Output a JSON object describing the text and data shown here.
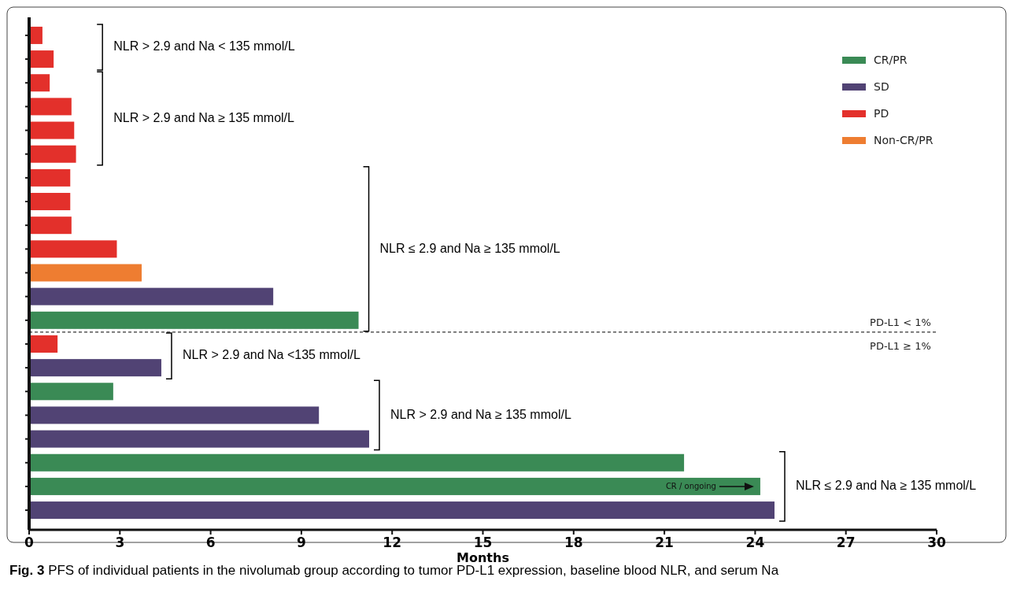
{
  "chart_data": {
    "type": "bar",
    "orientation": "horizontal",
    "xlabel": "Months",
    "xlim": [
      0,
      30
    ],
    "xticks": [
      0,
      3,
      6,
      9,
      12,
      15,
      18,
      21,
      24,
      27,
      30
    ],
    "tick_labels": "x",
    "legend": "top right",
    "grid": false,
    "categories": [
      null,
      null,
      null,
      null,
      null,
      null,
      null,
      null,
      null,
      null,
      null,
      null,
      null,
      null,
      null,
      null,
      null,
      null,
      null,
      null,
      null
    ],
    "series": [
      {
        "name": "CR/PR",
        "color": "#3a8a55",
        "values": [
          null,
          null,
          null,
          null,
          null,
          null,
          null,
          null,
          null,
          null,
          null,
          null,
          10.89,
          null,
          null,
          2.78,
          null,
          null,
          21.65,
          24.17,
          null
        ]
      },
      {
        "name": "SD",
        "color": "#514374",
        "values": [
          null,
          null,
          null,
          null,
          null,
          null,
          null,
          null,
          null,
          null,
          null,
          8.07,
          null,
          null,
          4.37,
          null,
          9.58,
          11.24,
          null,
          null,
          24.64
        ]
      },
      {
        "name": "PD",
        "color": "#e3302b",
        "values": [
          0.44,
          0.81,
          0.68,
          1.4,
          1.49,
          1.55,
          1.36,
          1.36,
          1.4,
          2.9,
          null,
          null,
          null,
          0.94,
          null,
          null,
          null,
          null,
          null,
          null,
          null
        ]
      },
      {
        "name": "Non-CR/PR",
        "color": "#ee7d31",
        "values": [
          null,
          null,
          null,
          null,
          null,
          null,
          null,
          null,
          null,
          null,
          3.72,
          null,
          null,
          null,
          null,
          null,
          null,
          null,
          null,
          null,
          null
        ]
      }
    ],
    "stacked": true,
    "annotations": [
      "PD-L1 < 1%",
      "NLR > 2.9 and Na < 135 mmol/L",
      "NLR > 2.9 and Na ≥ 135 mmol/L",
      "NLR ≤ 2.9 and Na ≥ 135 mmol/L",
      "NLR > 2.9 and Na <135 mmol/L",
      "NLR > 2.9 and Na ≥ 135 mmol/L",
      "NLR ≤ 2.9 and Na ≥ 135 mmol/L",
      "PD-L1 ≥ 1%",
      "CR / ongoing",
      "Fig. 3  PFS of individual patients in the nivolumab group according to tumor PD-L1 expression, baseline blood NLR, and serum Na"
    ]
  }
}
